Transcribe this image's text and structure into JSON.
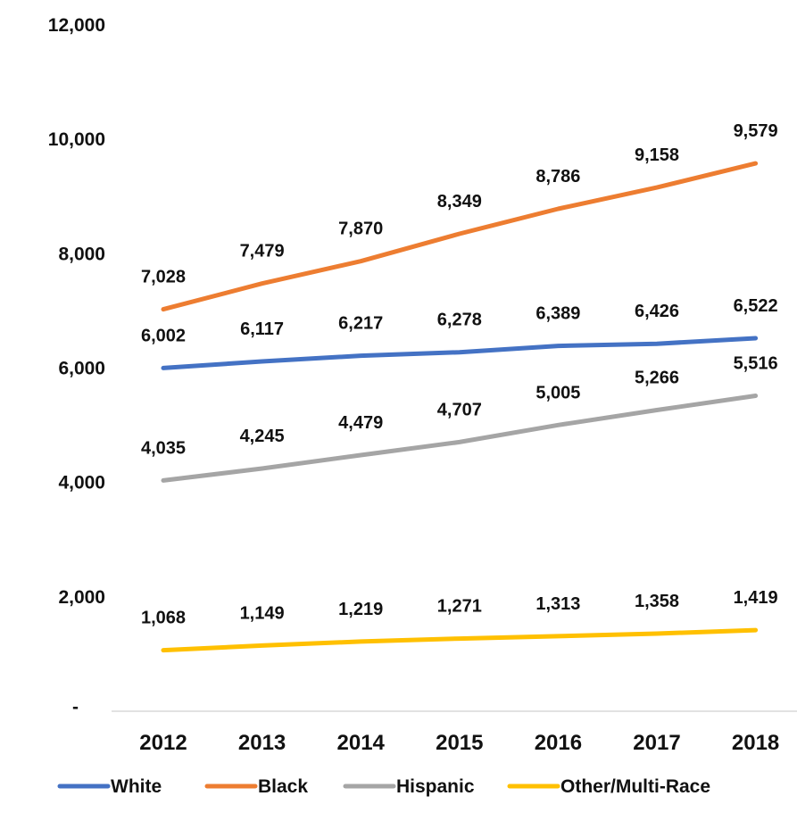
{
  "chart_data": {
    "type": "line",
    "title": "",
    "xlabel": "",
    "ylabel": "",
    "categories": [
      "2012",
      "2013",
      "2014",
      "2015",
      "2016",
      "2017",
      "2018"
    ],
    "ylim": [
      0,
      12000
    ],
    "yticks": [
      0,
      2000,
      4000,
      6000,
      8000,
      10000,
      12000
    ],
    "ytick_labels": [
      "-",
      "2,000",
      "4,000",
      "6,000",
      "8,000",
      "10,000",
      "12,000"
    ],
    "grid": false,
    "legend_position": "bottom",
    "series": [
      {
        "name": "White",
        "color": "#4472C4",
        "values": [
          6002,
          6117,
          6217,
          6278,
          6389,
          6426,
          6522
        ],
        "labels": [
          "6,002",
          "6,117",
          "6,217",
          "6,278",
          "6,389",
          "6,426",
          "6,522"
        ]
      },
      {
        "name": "Black",
        "color": "#ED7D31",
        "values": [
          7028,
          7479,
          7870,
          8349,
          8786,
          9158,
          9579
        ],
        "labels": [
          "7,028",
          "7,479",
          "7,870",
          "8,349",
          "8,786",
          "9,158",
          "9,579"
        ]
      },
      {
        "name": "Hispanic",
        "color": "#A5A5A5",
        "values": [
          4035,
          4245,
          4479,
          4707,
          5005,
          5266,
          5516
        ],
        "labels": [
          "4,035",
          "4,245",
          "4,479",
          "4,707",
          "5,005",
          "5,266",
          "5,516"
        ]
      },
      {
        "name": "Other/Multi-Race",
        "color": "#FFC000",
        "values": [
          1068,
          1149,
          1219,
          1271,
          1313,
          1358,
          1419
        ],
        "labels": [
          "1,068",
          "1,149",
          "1,219",
          "1,271",
          "1,313",
          "1,358",
          "1,419"
        ]
      }
    ]
  }
}
